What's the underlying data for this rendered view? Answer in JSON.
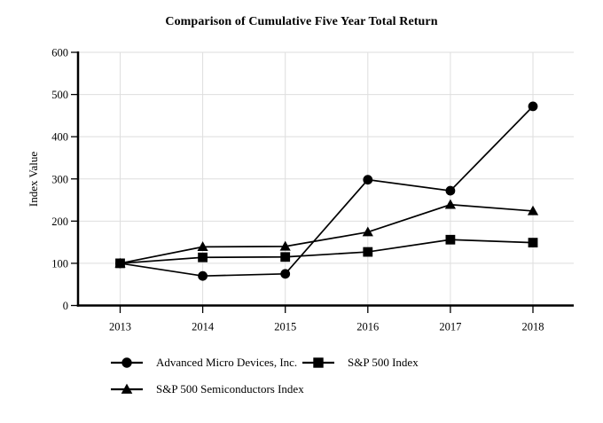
{
  "chart_data": {
    "type": "line",
    "title": "Comparison of Cumulative Five Year Total Return",
    "xlabel": "",
    "ylabel": "Index Value",
    "x": [
      "2013",
      "2014",
      "2015",
      "2016",
      "2017",
      "2018"
    ],
    "ylim": [
      0,
      600
    ],
    "yticks": [
      0,
      100,
      200,
      300,
      400,
      500,
      600
    ],
    "grid": true,
    "legend_position": "bottom-left",
    "series": [
      {
        "name": "Advanced Micro Devices, Inc.",
        "marker": "circle",
        "color": "#000000",
        "values": [
          100,
          70,
          75,
          298,
          272,
          472
        ]
      },
      {
        "name": "S&P 500 Index",
        "marker": "square",
        "color": "#000000",
        "values": [
          100,
          114,
          115,
          127,
          156,
          149
        ]
      },
      {
        "name": "S&P 500 Semiconductors Index",
        "marker": "triangle",
        "color": "#000000",
        "values": [
          100,
          139,
          140,
          174,
          239,
          224
        ]
      }
    ],
    "colors": {
      "grid": "#dedede",
      "axis": "#000000",
      "background": "#ffffff",
      "series": "#000000"
    }
  }
}
